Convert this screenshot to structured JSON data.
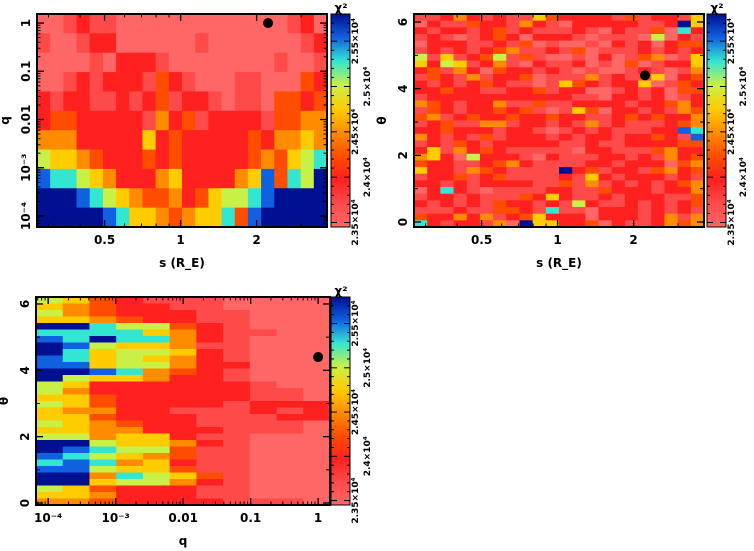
{
  "colorbar": {
    "label": "χ²",
    "range": [
      23450,
      25800
    ],
    "ticks": [
      {
        "v": 23500,
        "label": "2.35×10⁴"
      },
      {
        "v": 24000,
        "label": "2.4×10⁴"
      },
      {
        "v": 24500,
        "label": "2.45×10⁴"
      },
      {
        "v": 25000,
        "label": "2.5×10⁴"
      },
      {
        "v": 25500,
        "label": "2.55×10⁴"
      }
    ],
    "level_colors": [
      "#ff6666",
      "#ff4a4a",
      "#ff2020",
      "#ff4d00",
      "#ff8c00",
      "#ffcc00",
      "#c8f046",
      "#33e6d2",
      "#1060e0",
      "#001090"
    ],
    "level_note": "z digits 0-9 map linearly onto colorbar range"
  },
  "chart_data": [
    {
      "type": "heatmap",
      "xlabel": "s (R_E)",
      "ylabel": "q",
      "xscale": "log",
      "yscale": "log",
      "xlim": [
        0.27,
        3.8
      ],
      "ylim": [
        5.9e-05,
        1.54
      ],
      "xticks": [
        {
          "v": 0.5,
          "label": "0.5"
        },
        {
          "v": 1,
          "label": "1"
        },
        {
          "v": 2,
          "label": "2"
        }
      ],
      "yticks": [
        {
          "v": 1,
          "label": "1"
        },
        {
          "v": 0.1,
          "label": "0.1"
        },
        {
          "v": 0.01,
          "label": "0.01"
        },
        {
          "v": 0.001,
          "label": "10⁻³"
        },
        {
          "v": 0.0001,
          "label": "10⁻⁴"
        }
      ],
      "cols": 22,
      "z_rows_top_to_bottom": [
        "0012110000000000000120",
        "1001220000001000000012",
        "0000102221000000001001",
        "0012122213210001100032",
        "2122112123122101103323",
        "2332222214231222213344",
        "4442222252322222324454",
        "6554322232322222343567",
        "8776542224522224583769",
        "9998765433423566789999",
        "9999987554345573899999"
      ],
      "best_fit": {
        "x": 2.22,
        "y": 1
      }
    },
    {
      "type": "heatmap",
      "xlabel": "s (R_E)",
      "ylabel": "θ",
      "xscale": "log",
      "yscale": "linear",
      "xlim": [
        0.27,
        3.8
      ],
      "ylim": [
        -0.15,
        6.24
      ],
      "xticks": [
        {
          "v": 0.5,
          "label": "0.5"
        },
        {
          "v": 1,
          "label": "1"
        },
        {
          "v": 2,
          "label": "2"
        }
      ],
      "yticks": [
        {
          "v": 0,
          "label": "0"
        },
        {
          "v": 2,
          "label": "2"
        },
        {
          "v": 4,
          "label": "4"
        },
        {
          "v": 6,
          "label": "6"
        }
      ],
      "cols": 22,
      "z_rows_top_to_bottom": [
        "1124212115322221312215",
        "0211322142102222211295",
        "2122123121112102113072",
        "1210123202221011106021",
        "0222112130100102120233",
        "1212123411213011121212",
        "6151236131001020134015",
        "5265124102112010301225",
        "2314203221210100121014",
        "1321412230111412115023",
        "2121232110153212250132",
        "2232211223122001212033",
        "1222222222221102212012",
        "4321224113112222122342",
        "1321223231015302212143",
        "3412322322322112323224",
        "1231144122121412111234",
        "2232221221012121112287",
        "4212131222121221223218",
        "1213212222211211222233",
        "2514232111110221113422",
        "4520622210211122121423",
        "3221123421111221222034",
        "5221432111192312213423",
        "1223123111121521222121",
        "2212122221131412121234",
        "0272101111221132221224",
        "1221211132521121222113",
        "2121213221216211212123",
        "1112113321711022212121",
        "3224241235222022212414",
        "7212214095522302112434"
      ],
      "best_fit": {
        "x": 2.22,
        "y": 4.4
      }
    },
    {
      "type": "heatmap",
      "xlabel": "q",
      "ylabel": "θ",
      "xscale": "log",
      "yscale": "linear",
      "xlim": [
        6.6e-05,
        1.5
      ],
      "ylim": [
        -0.06,
        6.21
      ],
      "xticks": [
        {
          "v": 0.0001,
          "label": "10⁻⁴"
        },
        {
          "v": 0.001,
          "label": "10⁻³"
        },
        {
          "v": 0.01,
          "label": "0.01"
        },
        {
          "v": 0.1,
          "label": "0.1"
        },
        {
          "v": 1,
          "label": "1"
        }
      ],
      "yticks": [
        {
          "v": 0,
          "label": "0"
        },
        {
          "v": 2,
          "label": "2"
        },
        {
          "v": 4,
          "label": "4"
        },
        {
          "v": 6,
          "label": "6"
        }
      ],
      "cols": 11,
      "z_rows_top_to_bottom": [
        "65321110000",
        "54322110000",
        "64322211000",
        "55432211000",
        "99766321000",
        "77775421100",
        "87977421000",
        "98655411000",
        "97566521000",
        "87565421000",
        "88566422000",
        "99874321000",
        "96554221000",
        "65222222100",
        "64222222110",
        "55322222110",
        "65322221222",
        "54422111212",
        "55322211122",
        "65432211110",
        "55442221110",
        "66455211000",
        "99655421000",
        "98766311000",
        "87654311000",
        "78745211000",
        "88655311000",
        "99476531000",
        "99566421000",
        "65322211000",
        "55422211000",
        "44322221110"
      ],
      "best_fit": {
        "x": 1,
        "y": 4.4
      }
    }
  ]
}
